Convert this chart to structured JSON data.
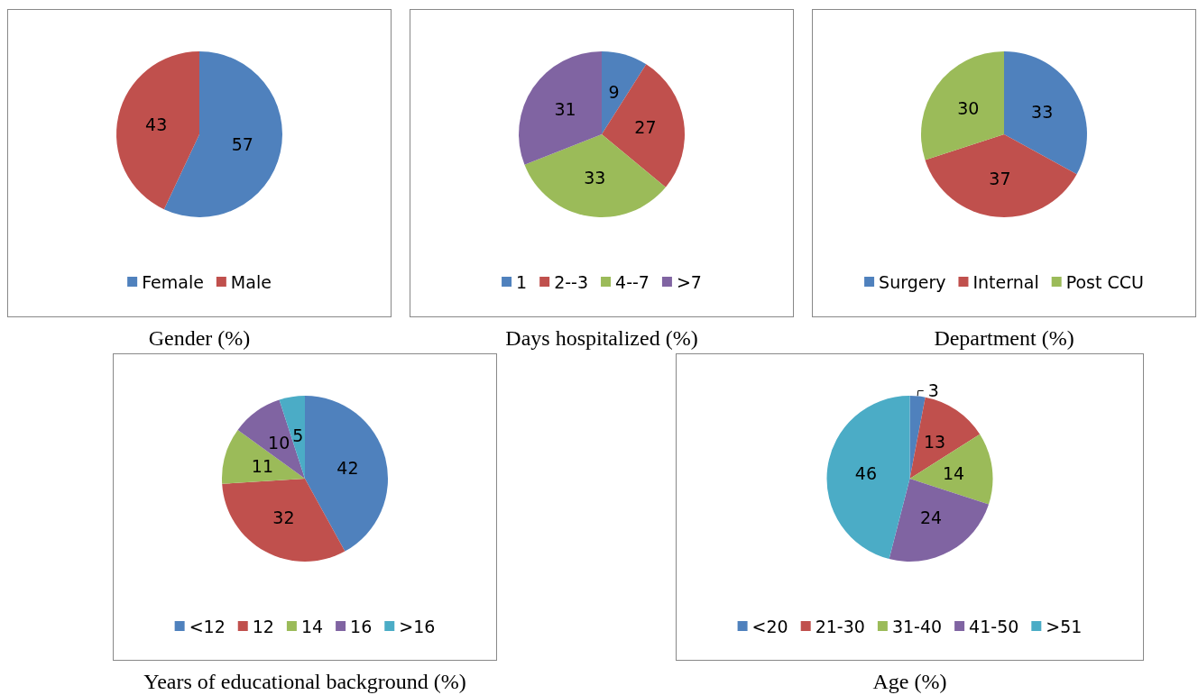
{
  "chart_data": [
    {
      "type": "pie",
      "title": "Gender (%)",
      "categories": [
        "Female",
        "Male"
      ],
      "values": [
        57,
        43
      ],
      "colors": [
        "#4f81bd",
        "#c0504d"
      ],
      "data_labels": true,
      "legend": "bottom"
    },
    {
      "type": "pie",
      "title": "Days hospitalized (%)",
      "categories": [
        "1",
        "2--3",
        "4--7",
        ">7"
      ],
      "values": [
        9,
        27,
        33,
        31
      ],
      "colors": [
        "#4f81bd",
        "#c0504d",
        "#9bbb59",
        "#8064a2"
      ],
      "data_labels": true,
      "legend": "bottom"
    },
    {
      "type": "pie",
      "title": "Department (%)",
      "categories": [
        "Surgery",
        "Internal",
        "Post CCU"
      ],
      "values": [
        33,
        37,
        30
      ],
      "colors": [
        "#4f81bd",
        "#c0504d",
        "#9bbb59"
      ],
      "data_labels": true,
      "legend": "bottom"
    },
    {
      "type": "pie",
      "title": "Years of educational background (%)",
      "categories": [
        "<12",
        "12",
        "14",
        "16",
        ">16"
      ],
      "values": [
        42,
        32,
        11,
        10,
        5
      ],
      "colors": [
        "#4f81bd",
        "#c0504d",
        "#9bbb59",
        "#8064a2",
        "#4bacc6"
      ],
      "data_labels": true,
      "legend": "bottom"
    },
    {
      "type": "pie",
      "title": "Age (%)",
      "categories": [
        "<20",
        "21-30",
        "31-40",
        "41-50",
        ">51"
      ],
      "values": [
        3,
        13,
        14,
        24,
        46
      ],
      "colors": [
        "#4f81bd",
        "#c0504d",
        "#9bbb59",
        "#8064a2",
        "#4bacc6"
      ],
      "data_labels": true,
      "legend": "bottom"
    }
  ]
}
